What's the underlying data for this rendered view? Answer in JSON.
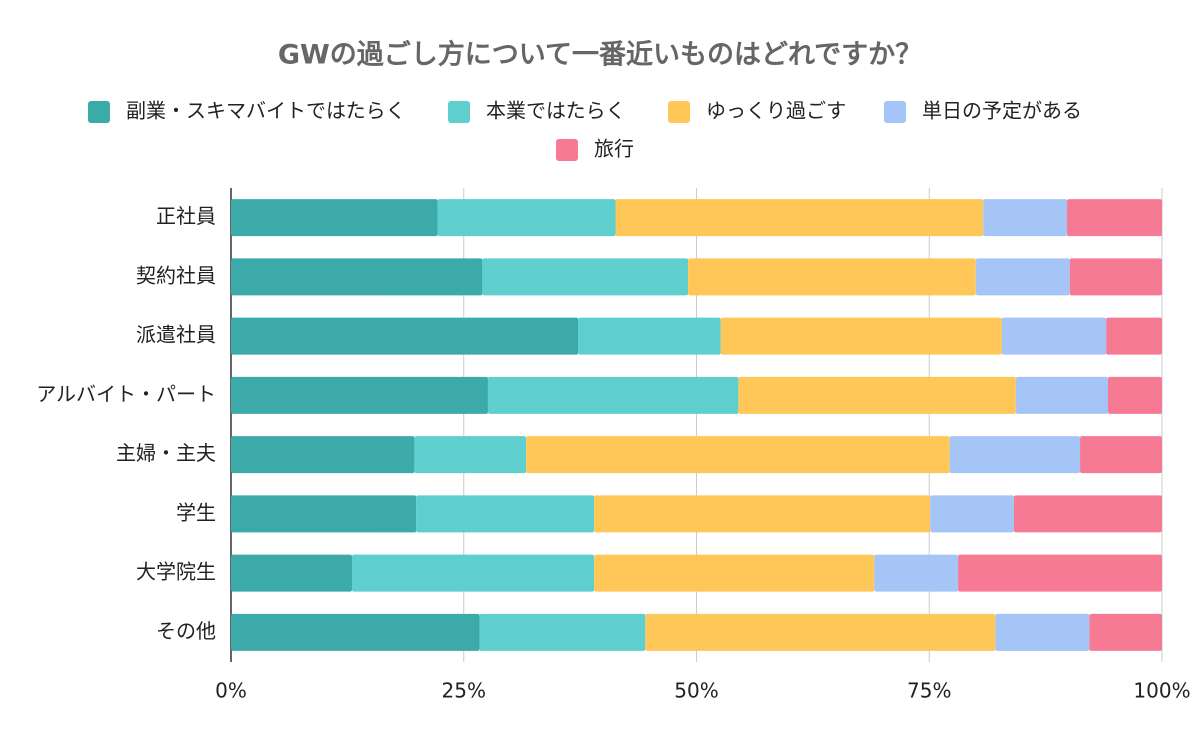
{
  "chart_data": {
    "type": "stacked-barh",
    "title": "GWの過ごし方について一番近いものはどれですか？",
    "categories": [
      "正社員",
      "契約社員",
      "派遣社員",
      "アルバイト・パート",
      "主婦・主夫",
      "学生",
      "大学院生",
      "その他"
    ],
    "series": [
      {
        "name": "副業・スキマバイトではたらく",
        "color": "#3baaa9",
        "values": [
          22.2,
          27.0,
          37.3,
          27.6,
          19.7,
          19.9,
          13.0,
          26.7
        ]
      },
      {
        "name": "本業ではたらく",
        "color": "#5ecece",
        "values": [
          19.1,
          22.1,
          15.3,
          26.9,
          12.0,
          19.1,
          26.0,
          17.8
        ]
      },
      {
        "name": "ゆっくり過ごす",
        "color": "#ffc757",
        "values": [
          39.5,
          30.9,
          30.2,
          29.8,
          45.5,
          36.1,
          30.1,
          37.6
        ]
      },
      {
        "name": "単日の予定がある",
        "color": "#a5c5f6",
        "values": [
          9.0,
          10.1,
          11.2,
          9.9,
          14.0,
          9.0,
          9.0,
          10.1
        ]
      },
      {
        "name": "旅行",
        "color": "#f67a93",
        "values": [
          10.2,
          9.9,
          6.0,
          5.8,
          8.8,
          15.9,
          21.9,
          7.8
        ]
      }
    ],
    "xlim": [
      0,
      100
    ],
    "xticks": [
      {
        "value": 0,
        "label": "0%"
      },
      {
        "value": 25,
        "label": "25%"
      },
      {
        "value": 50,
        "label": "50%"
      },
      {
        "value": 75,
        "label": "75%"
      },
      {
        "value": 100,
        "label": "100%"
      }
    ],
    "grid": true
  }
}
